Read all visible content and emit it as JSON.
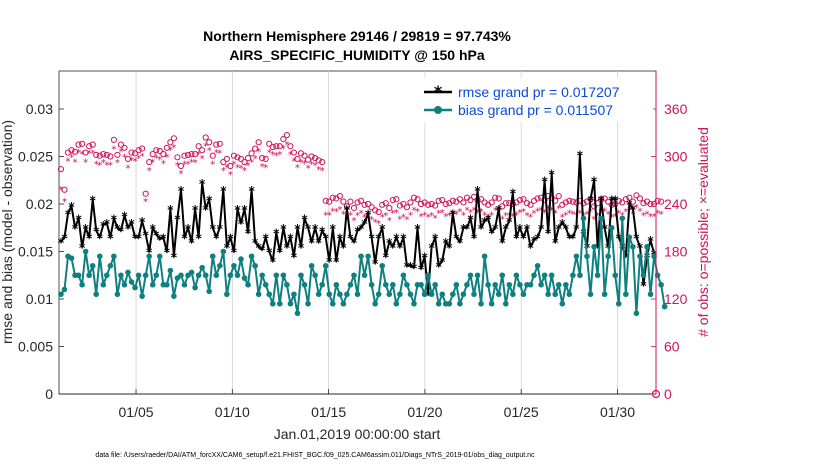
{
  "chart_data": {
    "type": "line",
    "title_line1": "Northern Hemisphere 29146 / 29819 = 97.743%",
    "title_line2": "AIRS_SPECIFIC_HUMIDITY @ 150 hPa",
    "xlabel": "Jan.01,2019 00:00:00 start",
    "ylabel_left": "rmse and bias (model - observation)",
    "ylabel_right": "# of obs: o=possible; ×=evaluated",
    "footer": "data file: /Users/raeder/DAI/ATM_forcXX/CAM6_setup/f.e21.FHIST_BGC.f09_025.CAM6assim.011/Diags_NTrS_2019-01/obs_diag_output.nc",
    "x_ticks": [
      {
        "label": "01/05",
        "day": 5
      },
      {
        "label": "01/10",
        "day": 10
      },
      {
        "label": "01/15",
        "day": 15
      },
      {
        "label": "01/20",
        "day": 20
      },
      {
        "label": "01/25",
        "day": 25
      },
      {
        "label": "01/30",
        "day": 30
      }
    ],
    "xlim": [
      1,
      32
    ],
    "ylim_left": [
      0,
      0.034
    ],
    "yticks_left": [
      "0",
      "0.005",
      "0.01",
      "0.015",
      "0.02",
      "0.025",
      "0.03"
    ],
    "ylim_right": [
      0,
      408
    ],
    "yticks_right": [
      "0",
      "60",
      "120",
      "180",
      "240",
      "300",
      "360"
    ],
    "legend": [
      {
        "label": "rmse grand pr = 0.017207",
        "color": "#000000"
      },
      {
        "label": "bias grand pr = 0.011507",
        "color": "#0f8080"
      }
    ],
    "colors": {
      "rmse": "#000000",
      "bias": "#0f8080",
      "obs": "#d0135a"
    },
    "series": [
      {
        "name": "rmse",
        "values": [
          0.016,
          0.0165,
          0.019,
          0.0198,
          0.0175,
          0.0185,
          0.0155,
          0.0175,
          0.0165,
          0.0205,
          0.0172,
          0.0165,
          0.0178,
          0.018,
          0.0165,
          0.0185,
          0.0175,
          0.0172,
          0.0188,
          0.0175,
          0.018,
          0.0165,
          0.0165,
          0.0182,
          0.0168,
          0.015,
          0.0175,
          0.0168,
          0.0163,
          0.0165,
          0.015,
          0.0195,
          0.0145,
          0.0185,
          0.0215,
          0.0165,
          0.0175,
          0.016,
          0.0195,
          0.0165,
          0.0222,
          0.0195,
          0.0205,
          0.0175,
          0.0165,
          0.0175,
          0.0215,
          0.0155,
          0.0165,
          0.015,
          0.0195,
          0.018,
          0.0195,
          0.017,
          0.0215,
          0.016,
          0.0155,
          0.0152,
          0.0165,
          0.015,
          0.014,
          0.017,
          0.015,
          0.0175,
          0.0155,
          0.0165,
          0.0145,
          0.0175,
          0.0155,
          0.0185,
          0.0175,
          0.016,
          0.0175,
          0.016,
          0.0172,
          0.0165,
          0.014,
          0.0175,
          0.014,
          0.0165,
          0.0155,
          0.0195,
          0.0165,
          0.016,
          0.0172,
          0.0175,
          0.018,
          0.019,
          0.0165,
          0.0138,
          0.0165,
          0.0175,
          0.0145,
          0.016,
          0.0155,
          0.0165,
          0.0155,
          0.0165,
          0.0135,
          0.0135,
          0.0133,
          0.0175,
          0.0132,
          0.0145,
          0.0105,
          0.0155,
          0.0165,
          0.0135,
          0.014,
          0.016,
          0.0155,
          0.019,
          0.0165,
          0.016,
          0.0175,
          0.0175,
          0.0185,
          0.0165,
          0.0215,
          0.0175,
          0.0182,
          0.0185,
          0.017,
          0.0175,
          0.0195,
          0.016,
          0.0175,
          0.0182,
          0.0212,
          0.0165,
          0.0175,
          0.0165,
          0.0175,
          0.0155,
          0.0162,
          0.0165,
          0.0175,
          0.0225,
          0.017,
          0.0232,
          0.016,
          0.0175,
          0.018,
          0.0175,
          0.0165,
          0.0165,
          0.0175,
          0.0252,
          0.017,
          0.0155,
          0.0205,
          0.0225,
          0.0155,
          0.0205,
          0.0175,
          0.0155,
          0.0205,
          0.0205,
          0.0165,
          0.0155,
          0.0145,
          0.02,
          0.0195,
          0.0165,
          0.0155,
          0.0115,
          0.0145,
          0.0162,
          0.0148
        ]
      },
      {
        "name": "bias",
        "values": [
          0.0105,
          0.011,
          0.0145,
          0.0143,
          0.0125,
          0.0125,
          0.0115,
          0.015,
          0.0125,
          0.0135,
          0.0105,
          0.0145,
          0.0115,
          0.0125,
          0.0135,
          0.0145,
          0.0105,
          0.0125,
          0.0115,
          0.0128,
          0.0118,
          0.0112,
          0.0125,
          0.0103,
          0.0125,
          0.0145,
          0.0115,
          0.0125,
          0.0145,
          0.0115,
          0.0115,
          0.013,
          0.0103,
          0.0122,
          0.0125,
          0.0115,
          0.0125,
          0.0128,
          0.0112,
          0.0125,
          0.0133,
          0.0125,
          0.0108,
          0.0145,
          0.0125,
          0.0135,
          0.015,
          0.0105,
          0.0125,
          0.0135,
          0.0125,
          0.0142,
          0.0122,
          0.0115,
          0.0145,
          0.0135,
          0.0105,
          0.0125,
          0.0115,
          0.0105,
          0.0095,
          0.0125,
          0.0095,
          0.0125,
          0.0115,
          0.0095,
          0.0105,
          0.0085,
          0.0125,
          0.0115,
          0.0095,
          0.0135,
          0.0125,
          0.0105,
          0.0115,
          0.0135,
          0.0105,
          0.0095,
          0.0115,
          0.0105,
          0.0095,
          0.0105,
          0.0115,
          0.0125,
          0.0105,
          0.0145,
          0.0125,
          0.0145,
          0.0115,
          0.0095,
          0.0105,
          0.0135,
          0.0115,
          0.0105,
          0.0115,
          0.0095,
          0.0105,
          0.0125,
          0.0115,
          0.0105,
          0.0095,
          0.0115,
          0.0115,
          0.0105,
          0.0125,
          0.0105,
          0.0115,
          0.0095,
          0.0105,
          0.0095,
          0.0095,
          0.0105,
          0.0115,
          0.0095,
          0.0105,
          0.0115,
          0.0125,
          0.0105,
          0.0125,
          0.0095,
          0.0145,
          0.0115,
          0.0095,
          0.0115,
          0.0105,
          0.0125,
          0.0095,
          0.0115,
          0.0105,
          0.0125,
          0.0115,
          0.0105,
          0.0115,
          0.0115,
          0.0125,
          0.0135,
          0.0115,
          0.0125,
          0.0105,
          0.0125,
          0.0105,
          0.0115,
          0.0095,
          0.0115,
          0.0105,
          0.0125,
          0.0145,
          0.0125,
          0.0185,
          0.0145,
          0.0105,
          0.0155,
          0.0125,
          0.0185,
          0.0105,
          0.0145,
          0.0175,
          0.0125,
          0.0095,
          0.0185,
          0.0105,
          0.0165,
          0.0155,
          0.0085,
          0.0145,
          0.0125,
          0.0155,
          0.0105,
          0.0145,
          0.0125,
          0.0115,
          0.0092
        ]
      },
      {
        "name": "obs_possible",
        "values": [
          284,
          258,
          305,
          308,
          306,
          315,
          316,
          305,
          313,
          315,
          302,
          301,
          303,
          302,
          300,
          321,
          302,
          315,
          311,
          297,
          305,
          304,
          308,
          310,
          253,
          293,
          303,
          308,
          307,
          303,
          311,
          318,
          323,
          299,
          288,
          301,
          302,
          303,
          303,
          313,
          308,
          324,
          318,
          301,
          315,
          316,
          293,
          297,
          288,
          301,
          299,
          297,
          293,
          298,
          304,
          310,
          318,
          298,
          297,
          316,
          312,
          313,
          313,
          322,
          327,
          313,
          305,
          297,
          304,
          301,
          296,
          300,
          298,
          295,
          293,
          244,
          243,
          248,
          247,
          250,
          243,
          237,
          243,
          235,
          242,
          244,
          239,
          240,
          236,
          232,
          230,
          239,
          241,
          235,
          245,
          246,
          238,
          240,
          236,
          242,
          248,
          246,
          240,
          242,
          239,
          240,
          238,
          244,
          245,
          240,
          241,
          244,
          243,
          246,
          242,
          248,
          245,
          249,
          245,
          246,
          242,
          239,
          242,
          248,
          247,
          237,
          241,
          241,
          240,
          242,
          245,
          246,
          241,
          239,
          244,
          247,
          248,
          245,
          250,
          248,
          244,
          250,
          239,
          242,
          244,
          243,
          242,
          244,
          241,
          243,
          246,
          237,
          241,
          246,
          247,
          243,
          239,
          240,
          244,
          242,
          246,
          248,
          243,
          251,
          247,
          241,
          243,
          240,
          240,
          244,
          243
        ]
      },
      {
        "name": "obs_evaluated",
        "values": [
          259,
          244,
          295,
          300,
          294,
          306,
          304,
          294,
          305,
          305,
          291,
          290,
          293,
          290,
          290,
          310,
          293,
          307,
          300,
          286,
          296,
          295,
          299,
          301,
          244,
          283,
          294,
          299,
          297,
          292,
          300,
          309,
          312,
          290,
          279,
          291,
          291,
          294,
          293,
          304,
          298,
          314,
          308,
          291,
          306,
          305,
          283,
          287,
          278,
          291,
          287,
          286,
          283,
          289,
          294,
          298,
          307,
          288,
          287,
          306,
          303,
          302,
          303,
          311,
          316,
          303,
          295,
          287,
          293,
          292,
          286,
          291,
          289,
          284,
          283,
          227,
          227,
          232,
          231,
          234,
          228,
          223,
          227,
          220,
          226,
          229,
          224,
          225,
          221,
          218,
          216,
          224,
          226,
          220,
          229,
          230,
          222,
          224,
          221,
          227,
          233,
          231,
          225,
          227,
          224,
          226,
          223,
          229,
          230,
          225,
          226,
          229,
          228,
          231,
          227,
          233,
          230,
          233,
          230,
          231,
          227,
          224,
          227,
          233,
          232,
          222,
          226,
          226,
          225,
          227,
          230,
          231,
          226,
          224,
          229,
          232,
          233,
          230,
          235,
          233,
          229,
          235,
          224,
          227,
          229,
          228,
          227,
          229,
          226,
          228,
          231,
          222,
          226,
          231,
          232,
          228,
          224,
          225,
          229,
          227,
          231,
          233,
          228,
          236,
          232,
          226,
          228,
          225,
          225,
          229,
          228
        ]
      }
    ],
    "obs_end_marker": {
      "label": "0",
      "value": 0
    }
  }
}
